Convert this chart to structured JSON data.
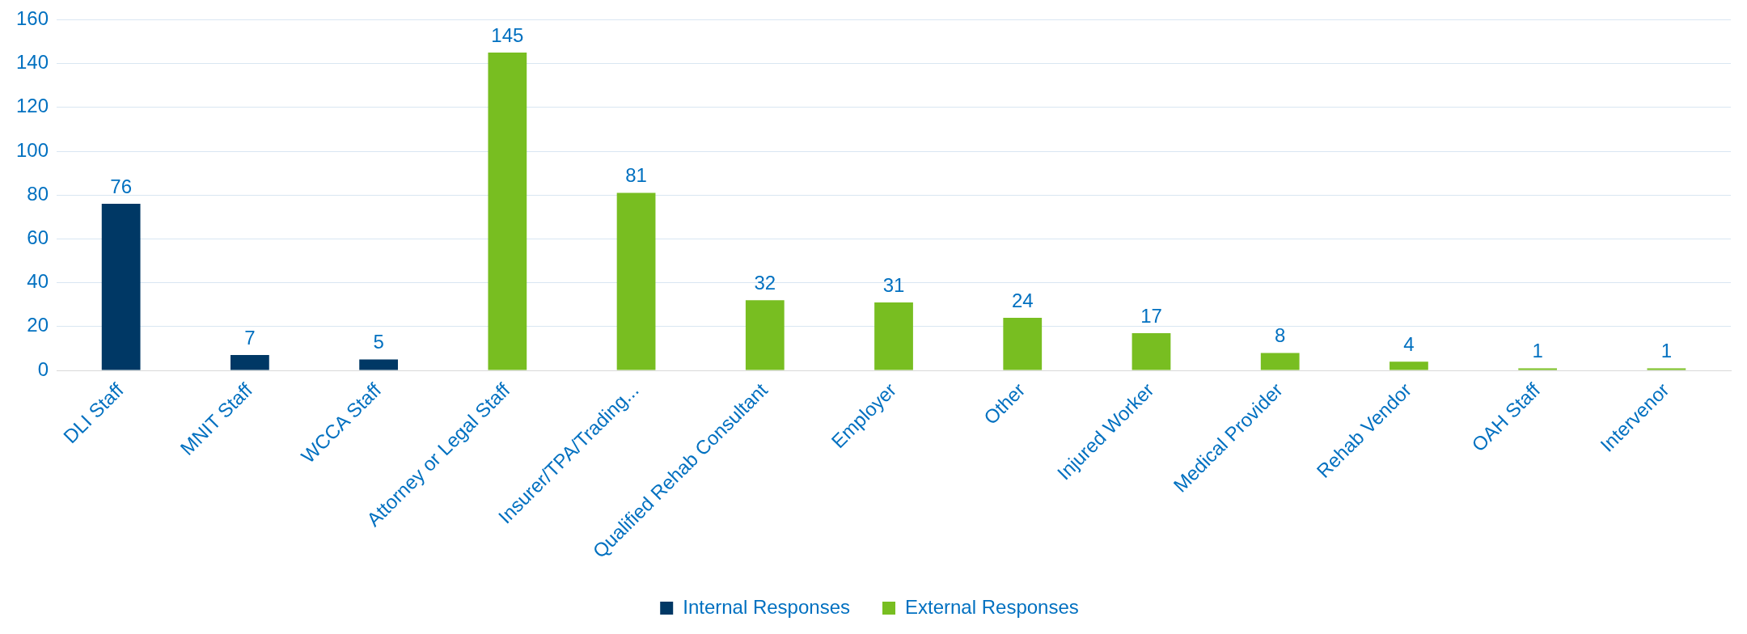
{
  "chart_data": {
    "type": "bar",
    "categories": [
      "DLI Staff",
      "MNIT Staff",
      "WCCA Staff",
      "Attorney or Legal Staff",
      "Insurer/TPA/Trading...",
      "Qualified Rehab Consultant",
      "Employer",
      "Other",
      "Injured Worker",
      "Medical Provider",
      "Rehab Vendor",
      "OAH Staff",
      "Intervenor"
    ],
    "series": [
      {
        "name": "Internal Responses",
        "color": "#003865",
        "values": [
          76,
          7,
          5,
          null,
          null,
          null,
          null,
          null,
          null,
          null,
          null,
          null,
          null
        ]
      },
      {
        "name": "External Responses",
        "color": "#78be21",
        "values": [
          null,
          null,
          null,
          145,
          81,
          32,
          31,
          24,
          17,
          8,
          4,
          1,
          1
        ]
      }
    ],
    "ylim": [
      0,
      160
    ],
    "yticks": [
      0,
      20,
      40,
      60,
      80,
      100,
      120,
      140,
      160
    ],
    "grid": "y",
    "legend": "bottom",
    "data_labels": true
  }
}
